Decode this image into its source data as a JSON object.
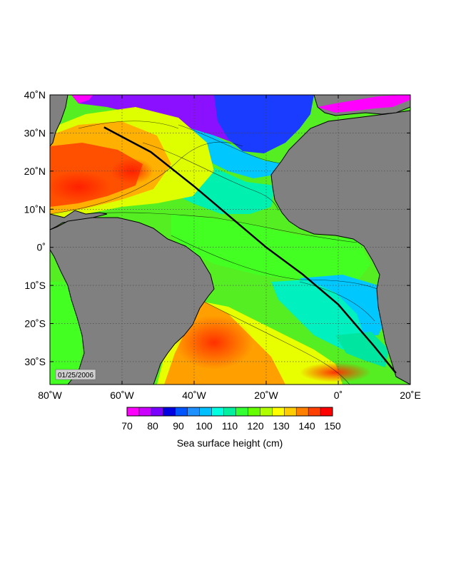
{
  "map": {
    "date_stamp": "01/25/2006",
    "lon_range": [
      -80,
      20
    ],
    "lat_range": [
      -36,
      40
    ],
    "lat_ticks": [
      {
        "value": 40,
        "label": "40˚N"
      },
      {
        "value": 30,
        "label": "30˚N"
      },
      {
        "value": 20,
        "label": "20˚N"
      },
      {
        "value": 10,
        "label": "10˚N"
      },
      {
        "value": 0,
        "label": "0˚"
      },
      {
        "value": -10,
        "label": "10˚S"
      },
      {
        "value": -20,
        "label": "20˚S"
      },
      {
        "value": -30,
        "label": "30˚S"
      }
    ],
    "lon_ticks": [
      {
        "value": -80,
        "label": "80˚W"
      },
      {
        "value": -60,
        "label": "60˚W"
      },
      {
        "value": -40,
        "label": "40˚W"
      },
      {
        "value": -20,
        "label": "20˚W"
      },
      {
        "value": 0,
        "label": "0˚"
      },
      {
        "value": 20,
        "label": "20˚E"
      }
    ],
    "land_color": "#808080",
    "track": [
      {
        "lon": -65,
        "lat": 31.5
      },
      {
        "lon": -58,
        "lat": 28
      },
      {
        "lon": -52,
        "lat": 25
      },
      {
        "lon": -40,
        "lat": 16
      },
      {
        "lon": -30,
        "lat": 8
      },
      {
        "lon": -20,
        "lat": 0
      },
      {
        "lon": -10,
        "lat": -7
      },
      {
        "lon": 0,
        "lat": -15
      },
      {
        "lon": 10,
        "lat": -26
      },
      {
        "lon": 16,
        "lat": -33
      }
    ]
  },
  "colorbar": {
    "title": "Sea surface height (cm)",
    "min": 70,
    "max": 150,
    "ticks": [
      "70",
      "80",
      "90",
      "100",
      "110",
      "120",
      "130",
      "140",
      "150"
    ],
    "colors": [
      "#ff00ff",
      "#cc00ff",
      "#7a00ff",
      "#0000e0",
      "#0055ff",
      "#1e90ff",
      "#00c0ff",
      "#00ffe0",
      "#00f0a0",
      "#33ff33",
      "#66ff00",
      "#b0ff00",
      "#ffff00",
      "#ffcc00",
      "#ff8000",
      "#ff4000",
      "#ff0000"
    ]
  }
}
